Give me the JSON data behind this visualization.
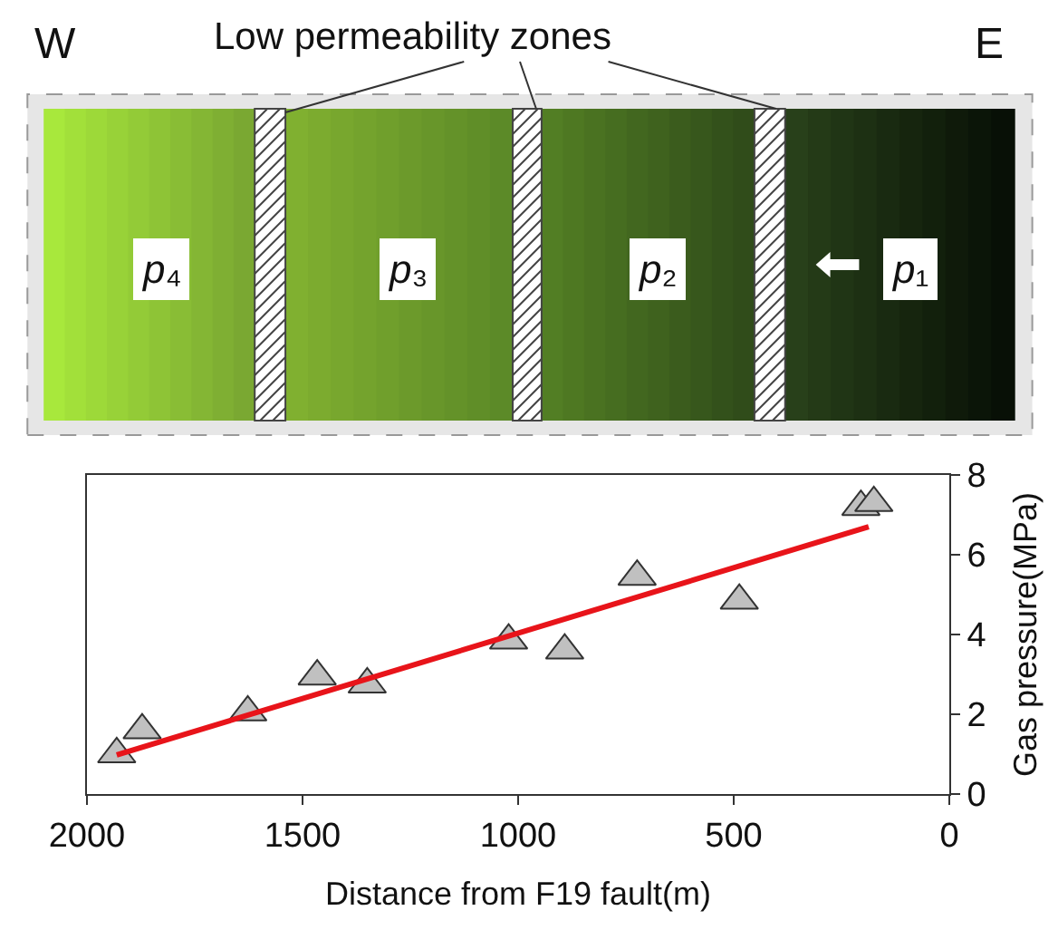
{
  "chart_data": {
    "type": "scatter",
    "xlabel": "Distance from F19 fault(m)",
    "ylabel": "Gas pressure(MPa)",
    "annotations": [
      "W",
      "E",
      "Low permeability zones",
      "p₄",
      "p₃",
      "p₂",
      "p₁"
    ],
    "xlim": [
      2000,
      0
    ],
    "xticks": [
      2000,
      1500,
      1000,
      500,
      0
    ],
    "ylim": [
      0,
      8
    ],
    "yticks": [
      0,
      2,
      4,
      6,
      8
    ],
    "marker": "triangle",
    "x": [
      1931,
      1872,
      1627,
      1466,
      1350,
      1022,
      892,
      724,
      487,
      205,
      175
    ],
    "series": [
      {
        "color": "#c0c0c0",
        "values": [
          1.0,
          1.6,
          2.05,
          2.95,
          2.75,
          3.85,
          3.6,
          5.45,
          4.85,
          7.2,
          7.3
        ]
      },
      {
        "type": "line",
        "color": "#e8141a",
        "x": [
          1931,
          187
        ],
        "values": [
          0.98,
          6.7
        ],
        "line_style": "solid",
        "marker": "none"
      }
    ]
  }
}
